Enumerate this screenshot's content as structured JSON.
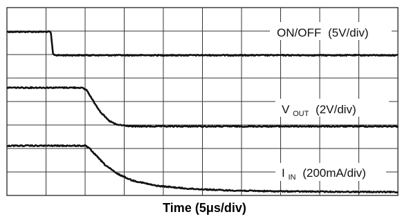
{
  "chart_data": {
    "type": "line",
    "xlabel": "Time (5μs/div)",
    "x_unit": "μs",
    "x_per_div": 5,
    "x_divisions": 10,
    "y_divisions": 8,
    "grid": true,
    "series": [
      {
        "name_main": "ON/OFF",
        "name_sub": "",
        "scale": "(5V/div)",
        "name": "ON/OFF (5V/div)",
        "color": "#111111",
        "x": [
          0,
          3,
          5.6,
          5.9,
          6.3,
          50
        ],
        "y": [
          5,
          5,
          5,
          0.2,
          0,
          0
        ]
      },
      {
        "name_main": "V",
        "name_sub": "OUT",
        "scale": "(2V/div)",
        "name": "VOUT (2V/div)",
        "color": "#111111",
        "x": [
          0,
          5,
          9.5,
          10.2,
          11,
          12,
          13,
          14,
          16,
          50
        ],
        "y": [
          3.3,
          3.3,
          3.3,
          3.1,
          2.2,
          1.2,
          0.5,
          0.15,
          0,
          0
        ]
      },
      {
        "name_main": "I",
        "name_sub": "IN",
        "scale": "(200mA/div)",
        "name": "IIN (200mA/div)",
        "color": "#111111",
        "x": [
          0,
          5,
          10,
          10.5,
          11.5,
          12.5,
          14,
          16,
          19,
          23,
          28,
          34,
          42,
          50
        ],
        "y": [
          400,
          400,
          400,
          380,
          310,
          240,
          165,
          105,
          60,
          35,
          20,
          12,
          8,
          5
        ]
      }
    ]
  }
}
